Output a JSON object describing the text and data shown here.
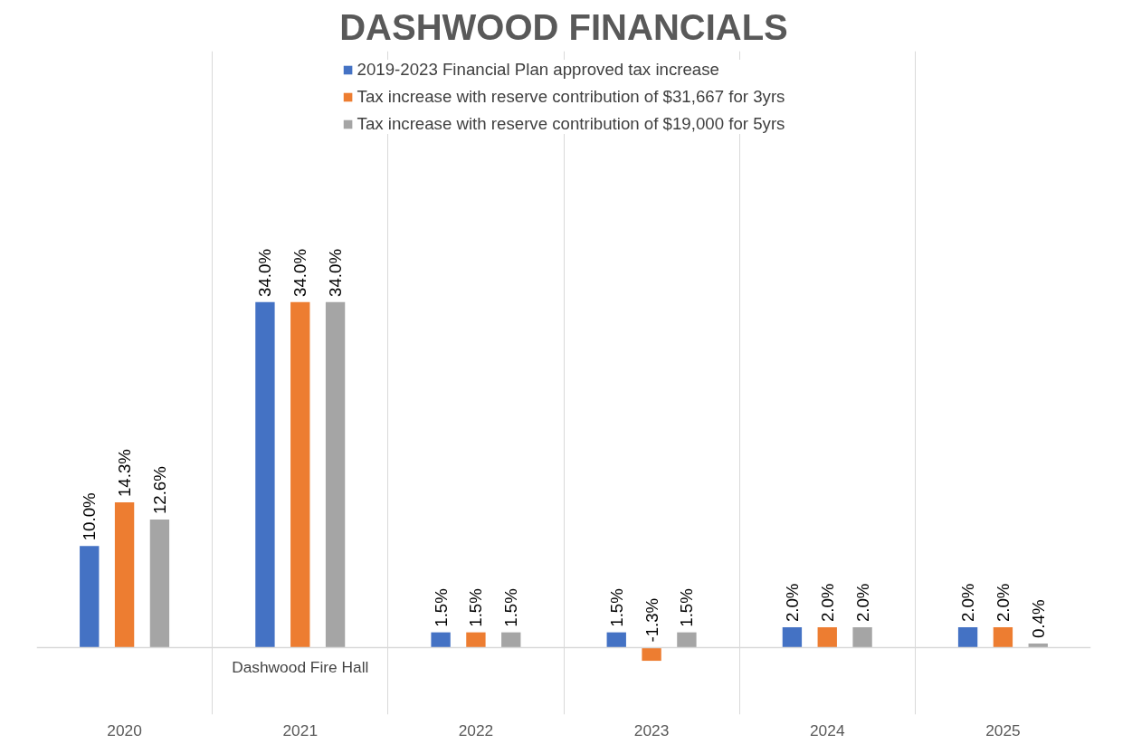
{
  "chart_data": {
    "type": "bar",
    "title": "DASHWOOD FINANCIALS",
    "categories": [
      "2020",
      "2021",
      "2022",
      "2023",
      "2024",
      "2025"
    ],
    "series": [
      {
        "name": "2019-2023 Financial Plan approved tax increase",
        "color": "#4472c4",
        "values": [
          10.0,
          34.0,
          1.5,
          1.5,
          2.0,
          2.0
        ],
        "value_labels": [
          "10.0%",
          "34.0%",
          "1.5%",
          "1.5%",
          "2.0%",
          "2.0%"
        ]
      },
      {
        "name": "Tax increase with reserve contribution of $31,667 for 3yrs",
        "color": "#ed7d31",
        "values": [
          14.3,
          34.0,
          1.5,
          -1.3,
          2.0,
          2.0
        ],
        "value_labels": [
          "14.3%",
          "34.0%",
          "1.5%",
          "-1.3%",
          "2.0%",
          "2.0%"
        ]
      },
      {
        "name": "Tax increase with reserve contribution of $19,000 for 5yrs",
        "color": "#a5a5a5",
        "values": [
          12.6,
          34.0,
          1.5,
          1.5,
          2.0,
          0.4
        ],
        "value_labels": [
          "12.6%",
          "34.0%",
          "1.5%",
          "1.5%",
          "2.0%",
          "0.4%"
        ]
      }
    ],
    "annotations": [
      "Dashwood Fire Hall"
    ],
    "grid": "x",
    "legend": "top"
  }
}
